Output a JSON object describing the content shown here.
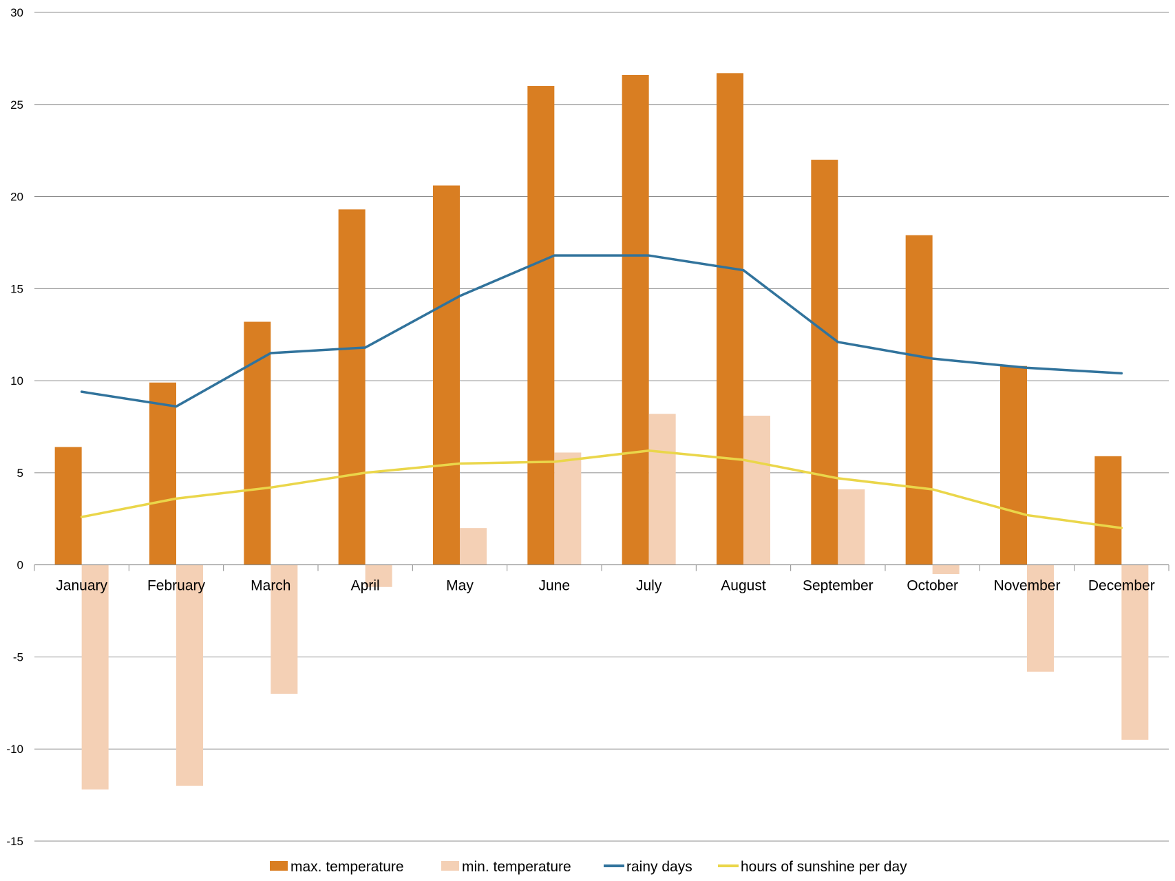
{
  "chart_data": {
    "type": "bar",
    "title": "",
    "xlabel": "",
    "ylabel": "",
    "ylim": [
      -15,
      30
    ],
    "y_ticks": [
      30,
      25,
      20,
      15,
      10,
      5,
      0,
      -5,
      -10,
      -15
    ],
    "grid": true,
    "legend_position": "bottom",
    "categories": [
      "January",
      "February",
      "March",
      "April",
      "May",
      "June",
      "July",
      "August",
      "September",
      "October",
      "November",
      "December"
    ],
    "series": [
      {
        "name": "max.  temperature",
        "type": "bar",
        "color": "#D97E22",
        "values": [
          6.4,
          9.9,
          13.2,
          19.3,
          20.6,
          26.0,
          26.6,
          26.7,
          22.0,
          17.9,
          10.8,
          5.9
        ]
      },
      {
        "name": "min. temperature",
        "type": "bar",
        "color": "#F4D0B5",
        "values": [
          -12.2,
          -12.0,
          -7.0,
          -1.2,
          2.0,
          6.1,
          8.2,
          8.1,
          4.1,
          -0.5,
          -5.8,
          -9.5
        ]
      },
      {
        "name": "rainy days",
        "type": "line",
        "color": "#31739C",
        "values": [
          9.4,
          8.6,
          11.5,
          11.8,
          14.6,
          16.8,
          16.8,
          16.0,
          12.1,
          11.2,
          10.7,
          10.4
        ]
      },
      {
        "name": "hours of sunshine per day",
        "type": "line",
        "color": "#EAD64A",
        "values": [
          2.6,
          3.6,
          4.2,
          5.0,
          5.5,
          5.6,
          6.2,
          5.7,
          4.7,
          4.1,
          2.7,
          2.0
        ]
      }
    ]
  }
}
